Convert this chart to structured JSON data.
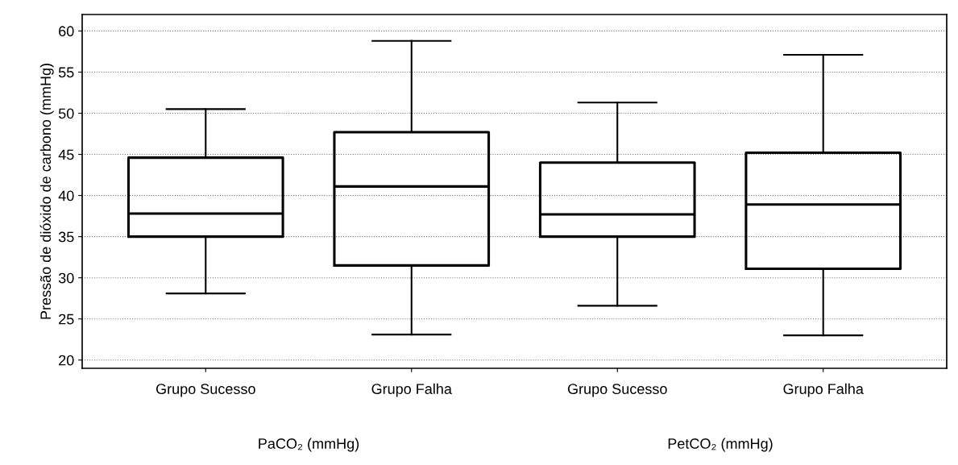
{
  "chart_data": {
    "type": "box",
    "ylabel": "Pressão de dióxido de carbono (mmHg)",
    "categories": [
      "Grupo Sucesso",
      "Grupo Falha",
      "Grupo Sucesso",
      "Grupo Falha"
    ],
    "boxes": [
      {
        "low": 28.1,
        "q1": 35.0,
        "median": 37.8,
        "q3": 44.6,
        "high": 50.5
      },
      {
        "low": 23.1,
        "q1": 31.5,
        "median": 41.1,
        "q3": 47.7,
        "high": 58.8
      },
      {
        "low": 26.6,
        "q1": 35.0,
        "median": 37.7,
        "q3": 44.0,
        "high": 51.3
      },
      {
        "low": 23.0,
        "q1": 31.1,
        "median": 38.9,
        "q3": 45.2,
        "high": 57.1
      }
    ],
    "ylim": [
      19,
      62
    ],
    "yticks": [
      20,
      25,
      30,
      35,
      40,
      45,
      50,
      55,
      60
    ],
    "grid": "y",
    "annotations": [
      "PaCO₂ (mmHg)",
      "PetCO₂ (mmHg)"
    ]
  }
}
